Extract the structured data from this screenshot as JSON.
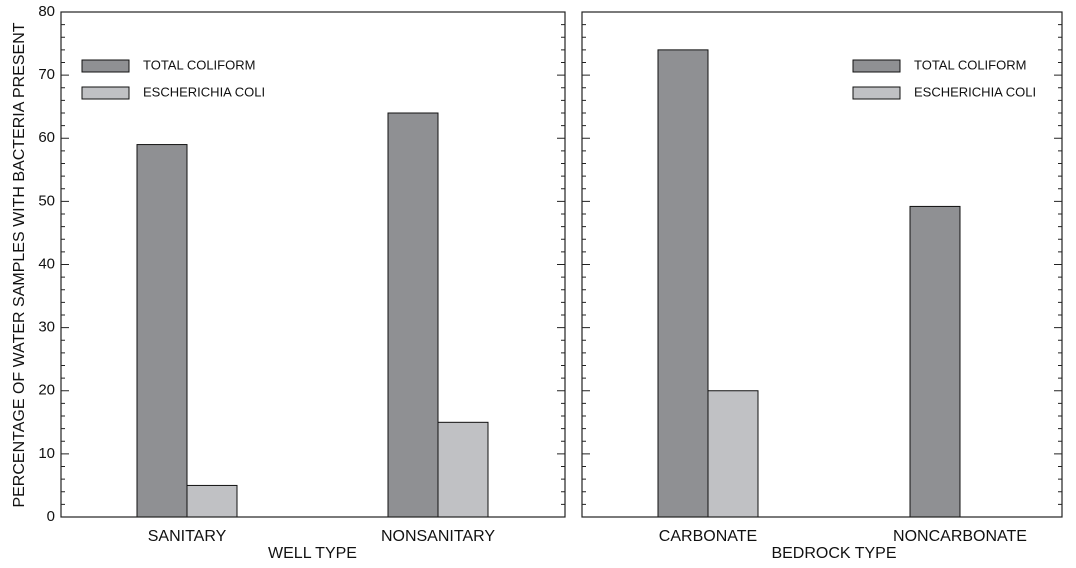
{
  "ylabel": "PERCENTAGE OF WATER SAMPLES WITH BACTERIA PRESENT",
  "colors": {
    "total_coliform": "#8f9093",
    "escherichia_coli": "#c0c1c4",
    "frame": "#222222"
  },
  "chart_data": [
    {
      "type": "bar",
      "xlabel": "WELL TYPE",
      "ylabel": "PERCENTAGE OF WATER SAMPLES WITH BACTERIA PRESENT",
      "categories": [
        "SANITARY",
        "NONSANITARY"
      ],
      "series": [
        {
          "name": "TOTAL COLIFORM",
          "values": [
            59,
            64
          ]
        },
        {
          "name": "ESCHERICHIA COLI",
          "values": [
            5,
            15
          ]
        }
      ],
      "ylim": [
        0,
        80
      ],
      "yticks": [
        0,
        10,
        20,
        30,
        40,
        50,
        60,
        70,
        80
      ],
      "legend": "top-left",
      "grid": false
    },
    {
      "type": "bar",
      "xlabel": "BEDROCK TYPE",
      "categories": [
        "CARBONATE",
        "NONCARBONATE"
      ],
      "series": [
        {
          "name": "TOTAL COLIFORM",
          "values": [
            74,
            49.2
          ]
        },
        {
          "name": "ESCHERICHIA COLI",
          "values": [
            20,
            0
          ]
        }
      ],
      "ylim": [
        0,
        80
      ],
      "legend": "top-right",
      "grid": false
    }
  ]
}
